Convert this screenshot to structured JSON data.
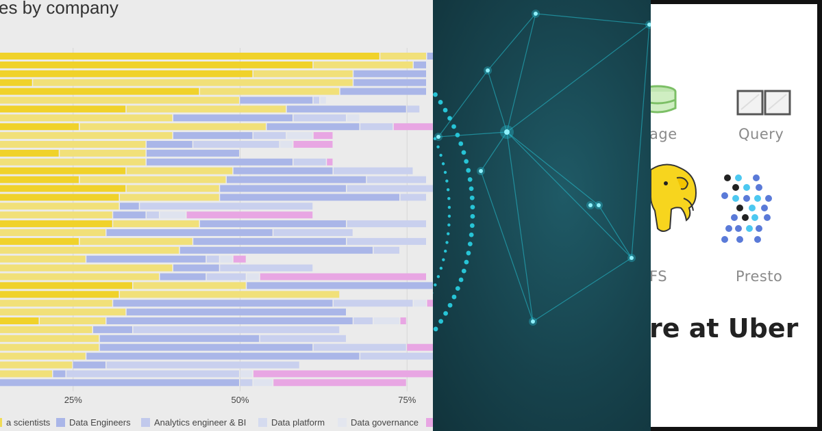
{
  "chart": {
    "title": "es by company",
    "ticks": [
      "25%",
      "50%",
      "75%"
    ],
    "legend": [
      {
        "label": "a scientists",
        "color": "#f1dc57"
      },
      {
        "label": "Data Engineers",
        "color": "#aab6e8"
      },
      {
        "label": "Analytics engineer & BI",
        "color": "#c1c9ec"
      },
      {
        "label": "Data platform",
        "color": "#d5dbef"
      },
      {
        "label": "Data governance",
        "color": "#e3e6ef"
      },
      {
        "label": "",
        "color": "#e8a6e3"
      }
    ]
  },
  "chart_data": {
    "type": "bar",
    "orientation": "horizontal",
    "stacked": true,
    "title": "es by company",
    "xlim": [
      0,
      100
    ],
    "x_ticks": [
      "25%",
      "50%",
      "75%"
    ],
    "series_colors": [
      "#f0d22a",
      "#f1e079",
      "#aab6e8",
      "#c9d0ee",
      "#dfe3ef",
      "#e8a6e3"
    ],
    "rows": [
      [
        71,
        7,
        22,
        0,
        0,
        0
      ],
      [
        61,
        15,
        2,
        0,
        0,
        0
      ],
      [
        52,
        15,
        11,
        0,
        0,
        0
      ],
      [
        19,
        48,
        11,
        0,
        0,
        0
      ],
      [
        44,
        21,
        13,
        0,
        0,
        0
      ],
      [
        5,
        45,
        11,
        1,
        1,
        0
      ],
      [
        33,
        24,
        18,
        2,
        0,
        0
      ],
      [
        0,
        40,
        18,
        8,
        2,
        0
      ],
      [
        26,
        28,
        14,
        5,
        0,
        6
      ],
      [
        2,
        38,
        12,
        5,
        4,
        3
      ],
      [
        0,
        36,
        7,
        13,
        2,
        6
      ],
      [
        23,
        13,
        14,
        0,
        0,
        0
      ],
      [
        0,
        36,
        22,
        5,
        0,
        1
      ],
      [
        33,
        16,
        15,
        12,
        0,
        0
      ],
      [
        26,
        22,
        21,
        9,
        0,
        0
      ],
      [
        33,
        14,
        19,
        14,
        0,
        0
      ],
      [
        32,
        15,
        27,
        4,
        0,
        0
      ],
      [
        0,
        32,
        3,
        26,
        0,
        0
      ],
      [
        0,
        31,
        5,
        2,
        4,
        19
      ],
      [
        31,
        13,
        22,
        12,
        0,
        0
      ],
      [
        5,
        25,
        25,
        12,
        0,
        0
      ],
      [
        26,
        17,
        23,
        12,
        0,
        0
      ],
      [
        14,
        27,
        29,
        4,
        0,
        0
      ],
      [
        0,
        27,
        18,
        2,
        2,
        2
      ],
      [
        5,
        35,
        7,
        14,
        0,
        0
      ],
      [
        0,
        38,
        7,
        6,
        2,
        25
      ],
      [
        34,
        17,
        28,
        0,
        0,
        0
      ],
      [
        32,
        33,
        0,
        0,
        0,
        0
      ],
      [
        0,
        31,
        33,
        12,
        2,
        4
      ],
      [
        0,
        33,
        33,
        0,
        0,
        0
      ],
      [
        20,
        10,
        37,
        3,
        4,
        1
      ],
      [
        5,
        23,
        6,
        31,
        0,
        0
      ],
      [
        0,
        29,
        24,
        13,
        0,
        0
      ],
      [
        7,
        22,
        32,
        14,
        0,
        8
      ],
      [
        0,
        27,
        41,
        12,
        0,
        0
      ],
      [
        0,
        25,
        5,
        29,
        0,
        0
      ],
      [
        0,
        22,
        2,
        26,
        2,
        30
      ],
      [
        0,
        7,
        43,
        2,
        3,
        20
      ]
    ]
  },
  "network": {
    "bg_color": "#17434d",
    "accent": "#27c4d6"
  },
  "uber": {
    "storage_label": "age",
    "query_label": "Query",
    "hdfs_label": "FS",
    "presto_label": "Presto",
    "headline": "re at Uber"
  }
}
